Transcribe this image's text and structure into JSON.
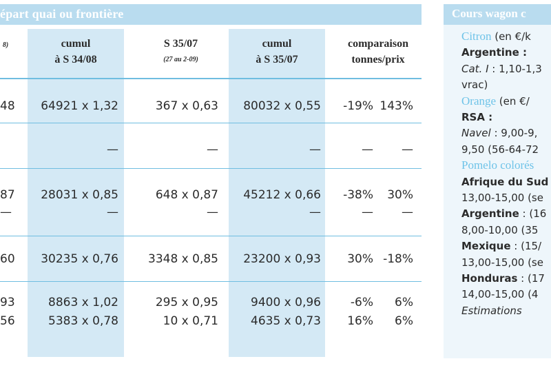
{
  "left_panel": {
    "header": "épart quai ou frontière",
    "columns": [
      {
        "line1": "",
        "line2": "8)"
      },
      {
        "line1": "cumul",
        "line2": "à S 34/08"
      },
      {
        "line1": "S 35/07",
        "line2": "(27 au 2-09)"
      },
      {
        "line1": "cumul",
        "line2": "à S 35/07"
      },
      {
        "line1": "comparaison",
        "line2": "tonnes/prix"
      }
    ],
    "rows": [
      {
        "c0": "48",
        "c1": "64921 x 1,32",
        "c2": "367 x 0,63",
        "c3": "80032 x 0,55",
        "c4": "-19%",
        "c5": "143%"
      },
      {
        "c0": "",
        "c1": "—",
        "c2": "—",
        "c3": "—",
        "c4": "—",
        "c5": "—"
      },
      {
        "c0": "87",
        "c1": "28031 x 0,85",
        "c2": "648 x 0,87",
        "c3": "45212 x 0,66",
        "c4": "-38%",
        "c5": "30%"
      },
      {
        "c0": "—",
        "c1": "—",
        "c2": "—",
        "c3": "—",
        "c4": "—",
        "c5": "—"
      },
      {
        "c0": "60",
        "c1": "30235 x 0,76",
        "c2": "3348 x 0,85",
        "c3": "23200 x 0,93",
        "c4": "30%",
        "c5": "-18%"
      },
      {
        "c0": "93",
        "c1": "8863 x 1,02",
        "c2": "295 x 0,95",
        "c3": "9400 x 0,96",
        "c4": "-6%",
        "c5": "6%"
      },
      {
        "c0": "56",
        "c1": "5383 x 0,78",
        "c2": "10 x 0,71",
        "c3": "4635 x 0,73",
        "c4": "16%",
        "c5": "6%"
      }
    ]
  },
  "right_panel": {
    "header": "Cours wagon c",
    "lines": [
      {
        "parts": [
          {
            "t": "Citron",
            "s": "blue"
          },
          {
            "t": " (en €/k",
            "s": "plain"
          }
        ]
      },
      {
        "parts": [
          {
            "t": "Argentine :",
            "s": "bold"
          }
        ]
      },
      {
        "parts": [
          {
            "t": "Cat. I",
            "s": "it"
          },
          {
            "t": " : 1,10-1,3",
            "s": "plain"
          }
        ]
      },
      {
        "parts": [
          {
            "t": "vrac)",
            "s": "plain"
          }
        ]
      },
      {
        "parts": [
          {
            "t": "Orange",
            "s": "blue"
          },
          {
            "t": " (en €/",
            "s": "plain"
          }
        ]
      },
      {
        "parts": [
          {
            "t": "RSA :",
            "s": "bold"
          }
        ]
      },
      {
        "parts": [
          {
            "t": "Navel",
            "s": "it"
          },
          {
            "t": " : 9,00-9,",
            "s": "plain"
          }
        ]
      },
      {
        "parts": [
          {
            "t": "9,50 (56-64-72",
            "s": "plain"
          }
        ]
      },
      {
        "parts": [
          {
            "t": "Pomelo colorés",
            "s": "blue"
          }
        ]
      },
      {
        "parts": [
          {
            "t": "Afrique du Sud",
            "s": "bold"
          }
        ]
      },
      {
        "parts": [
          {
            "t": "13,00-15,00 (se",
            "s": "plain"
          }
        ]
      },
      {
        "parts": [
          {
            "t": "Argentine",
            "s": "bold"
          },
          {
            "t": " : (16",
            "s": "plain"
          }
        ]
      },
      {
        "parts": [
          {
            "t": "8,00-10,00 (35",
            "s": "plain"
          }
        ]
      },
      {
        "parts": [
          {
            "t": "Mexique",
            "s": "bold"
          },
          {
            "t": " : (15/",
            "s": "plain"
          }
        ]
      },
      {
        "parts": [
          {
            "t": "13,00-15,00 (se",
            "s": "plain"
          }
        ]
      },
      {
        "parts": [
          {
            "t": "Honduras",
            "s": "bold"
          },
          {
            "t": " : (17",
            "s": "plain"
          }
        ]
      },
      {
        "parts": [
          {
            "t": "14,00-15,00 (4",
            "s": "plain"
          }
        ]
      },
      {
        "parts": [
          {
            "t": "Estimations",
            "s": "it"
          }
        ]
      }
    ]
  }
}
